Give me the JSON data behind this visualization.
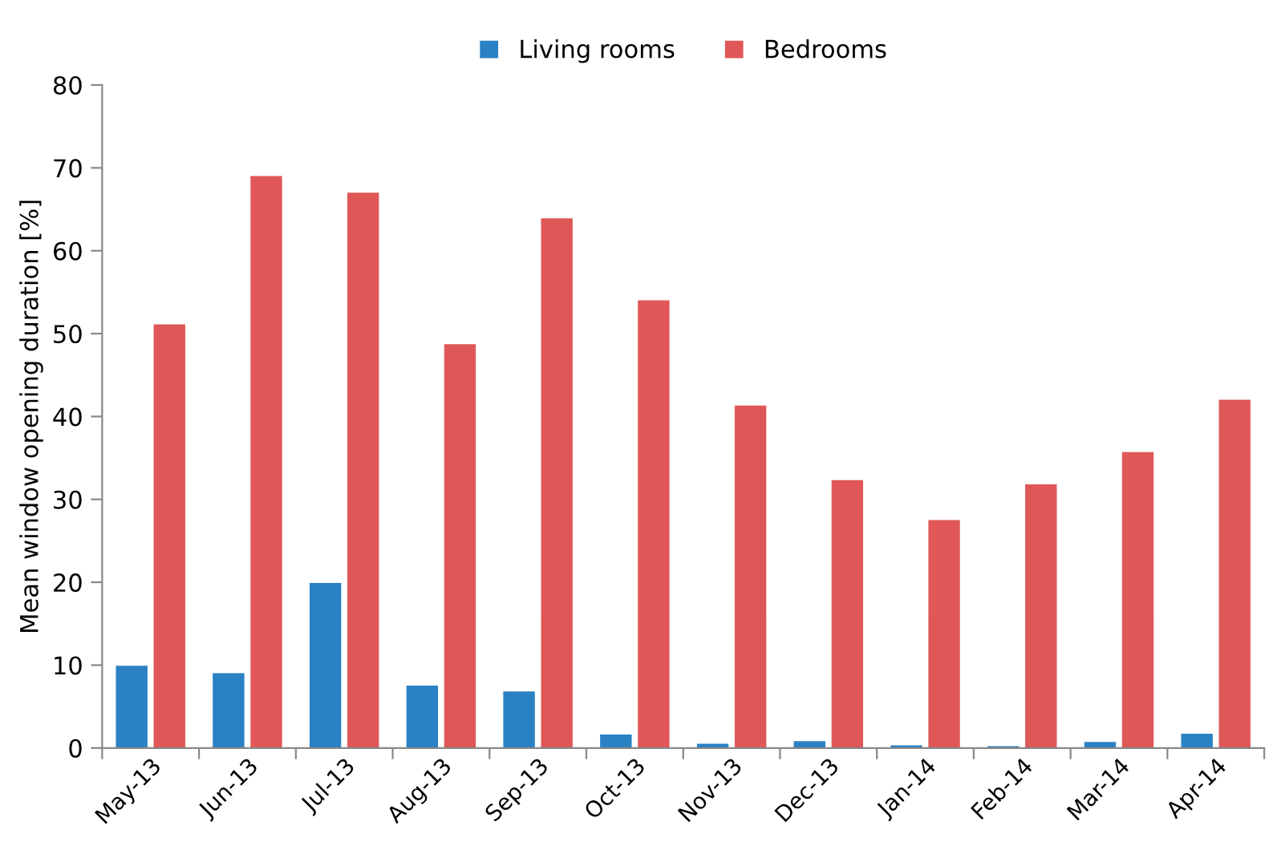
{
  "chart_data": {
    "type": "bar",
    "ylabel": "Mean window opening duration [%]",
    "categories": [
      "May-13",
      "Jun-13",
      "Jul-13",
      "Aug-13",
      "Sep-13",
      "Oct-13",
      "Nov-13",
      "Dec-13",
      "Jan-14",
      "Feb-14",
      "Mar-14",
      "Apr-14"
    ],
    "series": [
      {
        "name": "Living rooms",
        "color": "#2a81c4",
        "values": [
          10,
          9.1,
          20,
          7.6,
          6.9,
          1.7,
          0.6,
          0.9,
          0.4,
          0.3,
          0.8,
          1.8
        ]
      },
      {
        "name": "Bedrooms",
        "color": "#e05757",
        "values": [
          51.2,
          69.1,
          67.1,
          48.8,
          64,
          54.1,
          41.4,
          32.4,
          27.6,
          31.9,
          35.8,
          42.1
        ]
      }
    ],
    "ylim": [
      0,
      80
    ],
    "yticks": [
      0,
      10,
      20,
      30,
      40,
      50,
      60,
      70,
      80
    ],
    "grid": false,
    "legend": "top"
  }
}
